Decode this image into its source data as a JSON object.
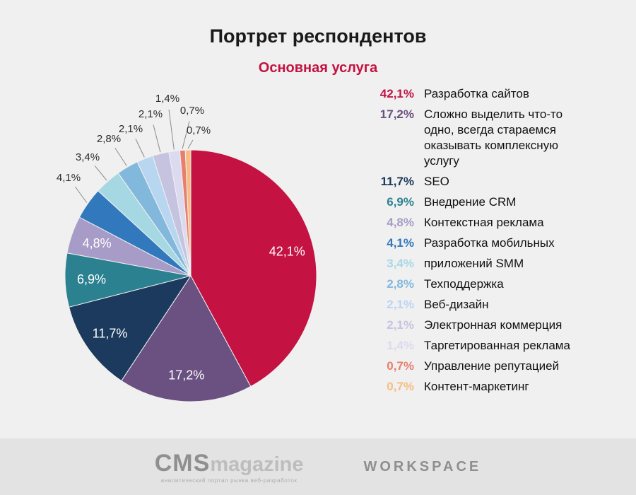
{
  "page": {
    "title": "Портрет респондентов",
    "subtitle": "Основная услуга"
  },
  "chart_data": {
    "type": "pie",
    "title": "Основная услуга",
    "start_angle_deg": 0,
    "direction": "clockwise",
    "unit": "%",
    "legend_position": "right",
    "slices": [
      {
        "value": 42.1,
        "display": "42,1%",
        "legend_label": "Разработка сайтов",
        "color": "#c41243",
        "label_placement": "inside"
      },
      {
        "value": 17.2,
        "display": "17,2%",
        "legend_label": "Сложно выделить что-то одно, всегда стараемся оказывать комплексную услугу",
        "color": "#6a5181",
        "label_placement": "inside"
      },
      {
        "value": 11.7,
        "display": "11,7%",
        "legend_label": "SEO",
        "color": "#1b3a5e",
        "label_placement": "inside"
      },
      {
        "value": 6.9,
        "display": "6,9%",
        "legend_label": "Внедрение CRM",
        "color": "#2c8191",
        "label_placement": "inside"
      },
      {
        "value": 4.8,
        "display": "4,8%",
        "legend_label": "Контекстная реклама",
        "color": "#a79cc7",
        "label_placement": "inside"
      },
      {
        "value": 4.1,
        "display": "4,1%",
        "legend_label": "Разработка мобильных",
        "color": "#3178bd",
        "label_placement": "outside"
      },
      {
        "value": 3.4,
        "display": "3,4%",
        "legend_label": "приложений SMM",
        "color": "#a6d8e4",
        "label_placement": "outside"
      },
      {
        "value": 2.8,
        "display": "2,8%",
        "legend_label": "Техподдержка",
        "color": "#83b8dd",
        "label_placement": "outside"
      },
      {
        "value": 2.1,
        "display": "2,1%",
        "legend_label": "Веб-дизайн",
        "color": "#b9d6f0",
        "label_placement": "outside"
      },
      {
        "value": 2.1,
        "display": "2,1%",
        "legend_label": "Электронная коммерция",
        "color": "#c6c3e0",
        "label_placement": "outside"
      },
      {
        "value": 1.4,
        "display": "1,4%",
        "legend_label": "Таргетированная реклама",
        "color": "#dcdaee",
        "label_placement": "outside"
      },
      {
        "value": 0.7,
        "display": "0,7%",
        "legend_label": "Управление репутацией",
        "color": "#e97e6f",
        "label_placement": "outside"
      },
      {
        "value": 0.7,
        "display": "0,7%",
        "legend_label": "Контент-маркетинг",
        "color": "#f6bd83",
        "label_placement": "outside"
      }
    ]
  },
  "footer": {
    "cms_logo_primary": "CMS",
    "cms_logo_secondary": "magazine",
    "cms_tagline": "аналитический портал рынка веб-разработок",
    "workspace_logo": "WORKSPACE"
  }
}
